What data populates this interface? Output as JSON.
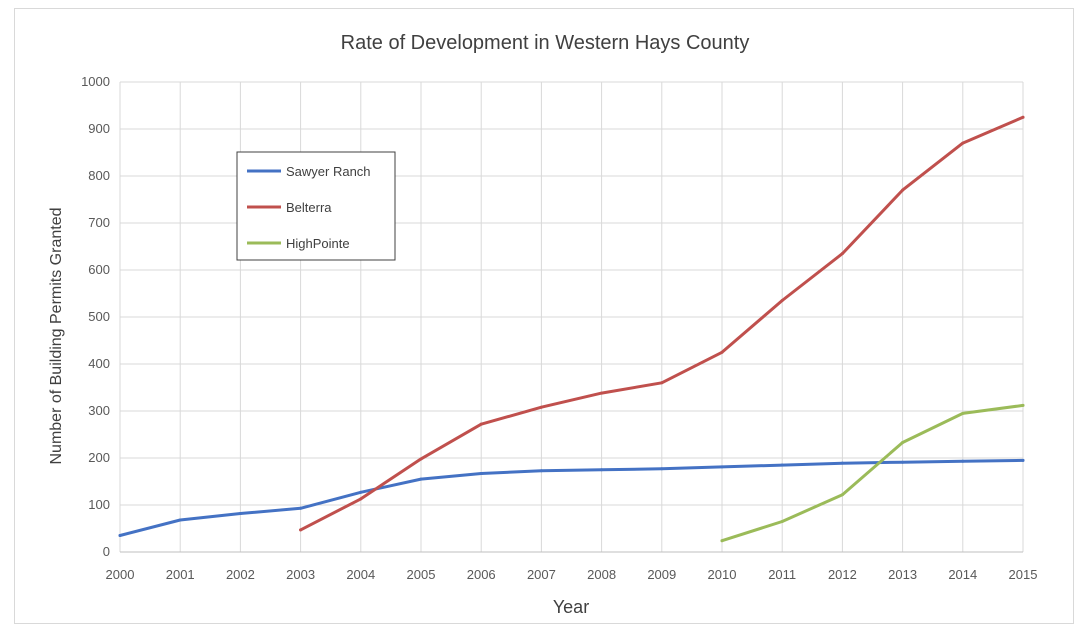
{
  "chart_data": {
    "type": "line",
    "title": "Rate of Development in Western Hays County",
    "xlabel": "Year",
    "ylabel": "Number of Building Permits Granted",
    "xlim": [
      2000,
      2015
    ],
    "ylim": [
      0,
      1000
    ],
    "x_ticks": [
      2000,
      2001,
      2002,
      2003,
      2004,
      2005,
      2006,
      2007,
      2008,
      2009,
      2010,
      2011,
      2012,
      2013,
      2014,
      2015
    ],
    "y_ticks": [
      0,
      100,
      200,
      300,
      400,
      500,
      600,
      700,
      800,
      900,
      1000
    ],
    "grid": true,
    "legend_position": "upper-left inside plot",
    "series": [
      {
        "name": "Sawyer Ranch",
        "color": "#4472c4",
        "x": [
          2000,
          2001,
          2002,
          2003,
          2004,
          2005,
          2006,
          2007,
          2008,
          2009,
          2010,
          2011,
          2012,
          2013,
          2014,
          2015
        ],
        "y": [
          35,
          68,
          82,
          93,
          127,
          155,
          167,
          173,
          175,
          177,
          181,
          185,
          189,
          191,
          193,
          195
        ]
      },
      {
        "name": "Belterra",
        "color": "#c0504d",
        "x": [
          2003,
          2004,
          2005,
          2006,
          2007,
          2008,
          2009,
          2010,
          2011,
          2012,
          2013,
          2014,
          2015
        ],
        "y": [
          47,
          113,
          198,
          272,
          308,
          338,
          360,
          425,
          535,
          635,
          770,
          870,
          925
        ]
      },
      {
        "name": "HighPointe",
        "color": "#9bbb59",
        "x": [
          2010,
          2011,
          2012,
          2013,
          2014,
          2015
        ],
        "y": [
          24,
          65,
          122,
          233,
          295,
          312
        ]
      }
    ]
  }
}
